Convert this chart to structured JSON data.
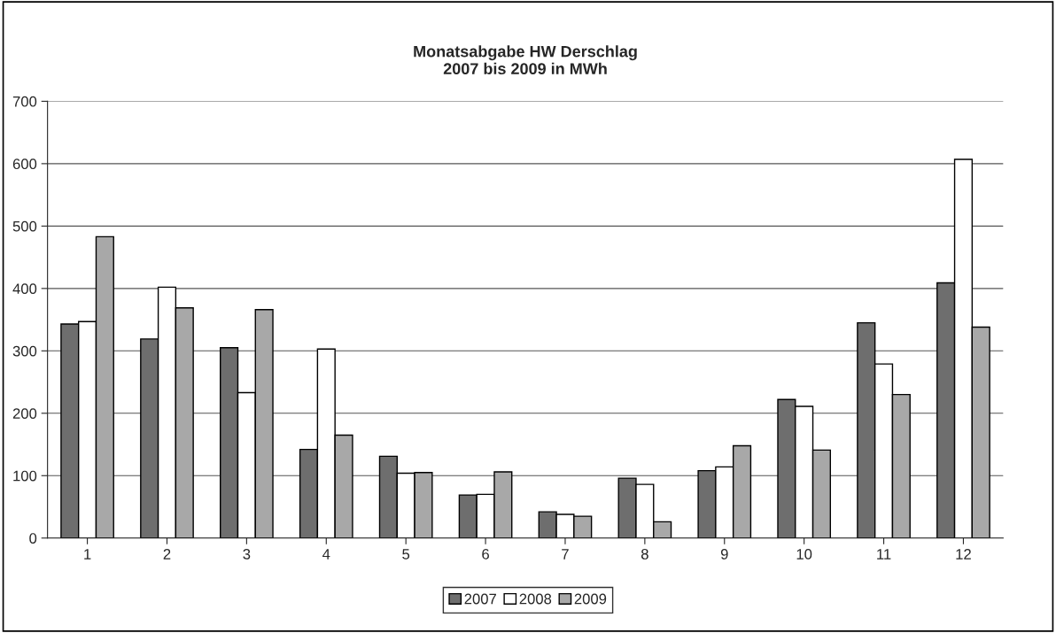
{
  "chart_data": {
    "type": "bar",
    "title": "Monatsabgabe HW Derschlag\n2007 bis 2009 in MWh",
    "categories": [
      "1",
      "2",
      "3",
      "4",
      "5",
      "6",
      "7",
      "8",
      "9",
      "10",
      "11",
      "12"
    ],
    "series": [
      {
        "name": "2007",
        "color": "#6e6e6e",
        "values": [
          343,
          319,
          305,
          142,
          131,
          69,
          42,
          96,
          108,
          222,
          345,
          409
        ]
      },
      {
        "name": "2008",
        "color": "#ffffff",
        "values": [
          347,
          402,
          233,
          303,
          104,
          70,
          38,
          86,
          114,
          211,
          279,
          607
        ]
      },
      {
        "name": "2009",
        "color": "#a8a8a8",
        "values": [
          483,
          369,
          366,
          165,
          105,
          106,
          35,
          26,
          148,
          141,
          230,
          338
        ]
      }
    ],
    "ylim": [
      0,
      700
    ],
    "yticks": [
      0,
      100,
      200,
      300,
      400,
      500,
      600,
      700
    ],
    "grid": "y",
    "legend": "bottom"
  }
}
